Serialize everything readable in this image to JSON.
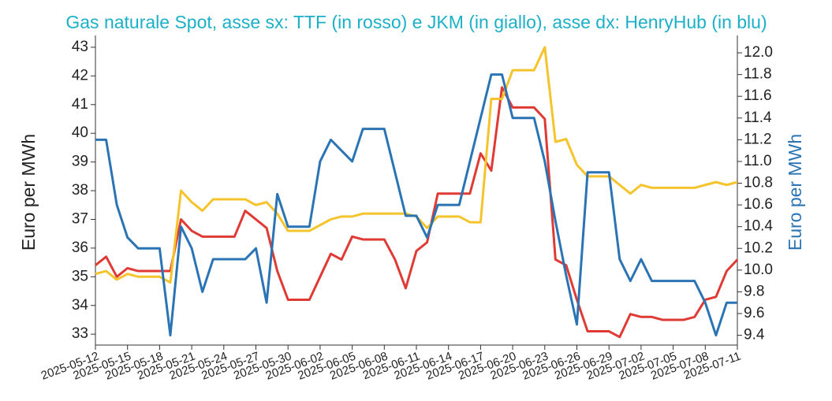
{
  "chart_data": {
    "type": "line",
    "title": "Gas naturale Spot, asse sx: TTF (in rosso) e JKM (in giallo), asse dx: HenryHub (in blu)",
    "ylabel": "Euro per MWh",
    "y2label": "Euro per MWh",
    "y2label_color": "#2a74b5",
    "x": [
      "2025-05-12",
      "2025-05-13",
      "2025-05-14",
      "2025-05-15",
      "2025-05-16",
      "2025-05-17",
      "2025-05-18",
      "2025-05-19",
      "2025-05-20",
      "2025-05-21",
      "2025-05-22",
      "2025-05-23",
      "2025-05-24",
      "2025-05-25",
      "2025-05-26",
      "2025-05-27",
      "2025-05-28",
      "2025-05-29",
      "2025-05-30",
      "2025-05-31",
      "2025-06-01",
      "2025-06-02",
      "2025-06-03",
      "2025-06-04",
      "2025-06-05",
      "2025-06-06",
      "2025-06-07",
      "2025-06-08",
      "2025-06-09",
      "2025-06-10",
      "2025-06-11",
      "2025-06-12",
      "2025-06-13",
      "2025-06-14",
      "2025-06-15",
      "2025-06-16",
      "2025-06-17",
      "2025-06-18",
      "2025-06-19",
      "2025-06-20",
      "2025-06-21",
      "2025-06-22",
      "2025-06-23",
      "2025-06-24",
      "2025-06-25",
      "2025-06-26",
      "2025-06-27",
      "2025-06-28",
      "2025-06-29",
      "2025-06-30",
      "2025-07-01",
      "2025-07-02",
      "2025-07-03",
      "2025-07-04",
      "2025-07-05",
      "2025-07-06",
      "2025-07-07",
      "2025-07-08",
      "2025-07-09",
      "2025-07-10",
      "2025-07-11"
    ],
    "xlim": [
      "2025-05-12",
      "2025-07-11"
    ],
    "xticks": [
      "2025-05-12",
      "2025-05-15",
      "2025-05-18",
      "2025-05-21",
      "2025-05-24",
      "2025-05-27",
      "2025-05-30",
      "2025-06-02",
      "2025-06-05",
      "2025-06-08",
      "2025-06-11",
      "2025-06-14",
      "2025-06-17",
      "2025-06-20",
      "2025-06-23",
      "2025-06-26",
      "2025-06-29",
      "2025-07-02",
      "2025-07-05",
      "2025-07-08",
      "2025-07-11"
    ],
    "ylim": [
      32.62,
      43.41
    ],
    "yticks": [
      33,
      34,
      35,
      36,
      37,
      38,
      39,
      40,
      41,
      42,
      43
    ],
    "y2lim": [
      9.31,
      12.16
    ],
    "y2ticks": [
      9.4,
      9.6,
      9.8,
      {
        "value": 10,
        "label": "10.0"
      },
      10.2,
      10.4,
      10.6,
      10.8,
      {
        "value": 11,
        "label": "11.0"
      },
      11.2,
      11.4,
      11.6,
      11.8,
      {
        "value": 12,
        "label": "12.0"
      }
    ],
    "series": [
      {
        "color": "#e03a35",
        "values": [
          35.4,
          35.7,
          35.0,
          35.3,
          35.2,
          35.2,
          35.2,
          35.2,
          37.0,
          36.6,
          36.4,
          36.4,
          36.4,
          36.4,
          37.3,
          37.0,
          36.7,
          35.2,
          34.2,
          34.2,
          34.2,
          35.0,
          35.8,
          35.6,
          36.4,
          36.3,
          36.3,
          36.3,
          35.6,
          34.6,
          35.9,
          36.2,
          37.9,
          37.9,
          37.9,
          37.9,
          39.3,
          38.7,
          41.6,
          40.9,
          40.9,
          40.9,
          40.5,
          35.6,
          35.4,
          34.2,
          33.1,
          33.1,
          33.1,
          32.9,
          33.7,
          33.6,
          33.6,
          33.5,
          33.5,
          33.5,
          33.6,
          34.2,
          34.3,
          35.2,
          35.6
        ]
      },
      {
        "color": "#f5c42c",
        "values": [
          35.1,
          35.2,
          34.9,
          35.1,
          35.0,
          35.0,
          35.0,
          34.8,
          38.0,
          37.6,
          37.3,
          37.7,
          37.7,
          37.7,
          37.7,
          37.5,
          37.6,
          37.2,
          36.6,
          36.6,
          36.6,
          36.8,
          37.0,
          37.1,
          37.1,
          37.2,
          37.2,
          37.2,
          37.2,
          37.2,
          37.1,
          36.7,
          37.1,
          37.1,
          37.1,
          36.9,
          36.9,
          41.2,
          41.2,
          42.2,
          42.2,
          42.2,
          43.0,
          39.7,
          39.8,
          38.9,
          38.5,
          38.5,
          38.5,
          38.2,
          37.9,
          38.2,
          38.1,
          38.1,
          38.1,
          38.1,
          38.1,
          38.2,
          38.3,
          38.2,
          38.3
        ]
      },
      {
        "color": "#2a74b5",
        "axis": "y2",
        "values": [
          11.2,
          11.2,
          10.6,
          10.3,
          10.2,
          10.2,
          10.2,
          9.4,
          10.4,
          10.2,
          9.8,
          10.1,
          10.1,
          10.1,
          10.1,
          10.2,
          9.7,
          10.7,
          10.4,
          10.4,
          10.4,
          11.0,
          11.2,
          11.1,
          11.0,
          11.3,
          11.3,
          11.3,
          10.9,
          10.5,
          10.5,
          10.3,
          10.6,
          10.6,
          10.6,
          11.0,
          11.4,
          11.8,
          11.8,
          11.4,
          11.4,
          11.4,
          11.0,
          10.45,
          9.95,
          9.5,
          10.9,
          10.9,
          10.9,
          10.1,
          9.9,
          10.1,
          9.9,
          9.9,
          9.9,
          9.9,
          9.9,
          9.7,
          9.4,
          9.7,
          9.7
        ]
      }
    ],
    "title_color": "#1bb0c8"
  }
}
